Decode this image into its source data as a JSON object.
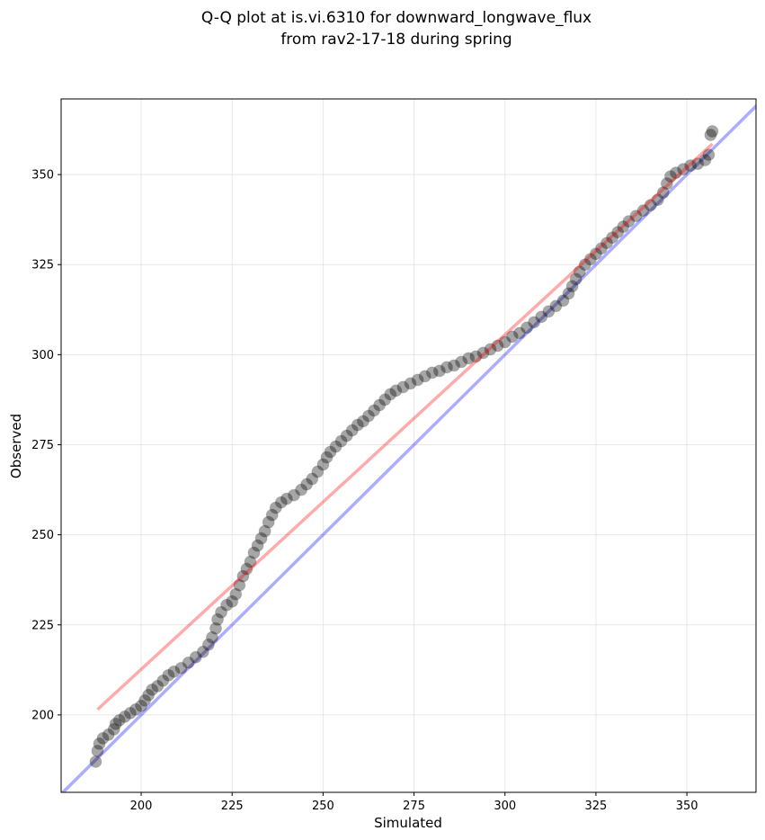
{
  "chart_data": {
    "type": "scatter",
    "title_line1": "Q-Q plot at is.vi.6310 for downward_longwave_flux",
    "title_line2": "from rav2-17-18 during spring",
    "xlabel": "Simulated",
    "ylabel": "Observed",
    "xlim": [
      178,
      369
    ],
    "ylim": [
      178.5,
      371
    ],
    "xticks": [
      200,
      225,
      250,
      275,
      300,
      325,
      350
    ],
    "yticks": [
      200,
      225,
      250,
      275,
      300,
      325,
      350
    ],
    "grid": true,
    "quantile_points": [
      [
        187.5,
        187
      ],
      [
        188,
        190
      ],
      [
        188.5,
        192
      ],
      [
        189.5,
        193.5
      ],
      [
        191,
        194.5
      ],
      [
        192.5,
        196
      ],
      [
        193,
        197.5
      ],
      [
        194,
        198.5
      ],
      [
        195.5,
        199.5
      ],
      [
        197,
        200.5
      ],
      [
        198.5,
        201.5
      ],
      [
        200,
        202.5
      ],
      [
        201,
        204
      ],
      [
        202,
        205.5
      ],
      [
        203,
        207
      ],
      [
        204.5,
        208
      ],
      [
        206,
        209.5
      ],
      [
        207.5,
        211
      ],
      [
        209,
        212
      ],
      [
        211,
        213
      ],
      [
        213,
        214.5
      ],
      [
        215,
        216
      ],
      [
        217,
        217.5
      ],
      [
        218.5,
        219.5
      ],
      [
        219.5,
        221.5
      ],
      [
        220.5,
        224
      ],
      [
        221,
        226.5
      ],
      [
        222,
        228.5
      ],
      [
        223.5,
        230.5
      ],
      [
        225,
        231.5
      ],
      [
        226,
        233.5
      ],
      [
        227,
        236
      ],
      [
        228,
        238.5
      ],
      [
        229,
        240.5
      ],
      [
        230,
        242.5
      ],
      [
        231,
        245
      ],
      [
        232,
        247
      ],
      [
        233,
        249
      ],
      [
        234,
        251
      ],
      [
        235,
        253.5
      ],
      [
        236,
        255.5
      ],
      [
        237,
        257.5
      ],
      [
        238.5,
        259
      ],
      [
        240,
        260
      ],
      [
        242,
        261
      ],
      [
        244,
        262.5
      ],
      [
        245.5,
        264
      ],
      [
        247,
        265.5
      ],
      [
        248.5,
        267.5
      ],
      [
        250,
        269.5
      ],
      [
        251,
        271.5
      ],
      [
        252,
        273
      ],
      [
        253.5,
        274.5
      ],
      [
        255,
        276
      ],
      [
        256.5,
        277.5
      ],
      [
        258,
        279
      ],
      [
        259.5,
        280.5
      ],
      [
        261,
        281.5
      ],
      [
        262.5,
        283
      ],
      [
        264,
        284.5
      ],
      [
        265.5,
        286
      ],
      [
        267,
        287.5
      ],
      [
        268.5,
        289
      ],
      [
        270,
        290
      ],
      [
        272,
        291
      ],
      [
        274,
        292
      ],
      [
        276,
        293
      ],
      [
        278,
        294
      ],
      [
        280,
        295
      ],
      [
        282,
        295.5
      ],
      [
        284,
        296.5
      ],
      [
        286,
        297
      ],
      [
        288,
        298
      ],
      [
        290,
        299
      ],
      [
        292,
        299.5
      ],
      [
        294,
        300.5
      ],
      [
        296,
        301.5
      ],
      [
        298,
        302.5
      ],
      [
        300,
        303.5
      ],
      [
        302,
        305
      ],
      [
        304,
        306
      ],
      [
        306,
        307.5
      ],
      [
        308,
        309
      ],
      [
        310,
        310.5
      ],
      [
        312,
        312
      ],
      [
        314,
        313.5
      ],
      [
        316,
        315
      ],
      [
        317.5,
        317
      ],
      [
        318.5,
        319
      ],
      [
        319.5,
        321
      ],
      [
        320.5,
        323
      ],
      [
        322,
        325
      ],
      [
        323.5,
        326.5
      ],
      [
        325,
        328
      ],
      [
        326.5,
        329.5
      ],
      [
        328,
        331
      ],
      [
        329.5,
        332.5
      ],
      [
        331,
        334
      ],
      [
        332.5,
        335.5
      ],
      [
        334,
        337
      ],
      [
        336,
        338.5
      ],
      [
        338,
        340
      ],
      [
        340,
        341.5
      ],
      [
        342,
        343
      ],
      [
        343.5,
        345
      ],
      [
        344.5,
        347.5
      ],
      [
        345.5,
        349.5
      ],
      [
        347,
        350.5
      ],
      [
        349,
        351.5
      ],
      [
        351,
        352.5
      ],
      [
        353,
        353
      ],
      [
        355,
        354
      ],
      [
        356,
        355.5
      ],
      [
        356.5,
        361
      ],
      [
        357,
        362
      ]
    ],
    "reference_line_one_to_one": {
      "color": "#0000ff"
    },
    "fit_line": {
      "color": "#ff0000",
      "points": [
        [
          188,
          201.5
        ],
        [
          357,
          358.5
        ]
      ]
    },
    "colors": {
      "points": "#000000",
      "one_to_one": "#0000ff",
      "fit": "#ff0000"
    }
  }
}
